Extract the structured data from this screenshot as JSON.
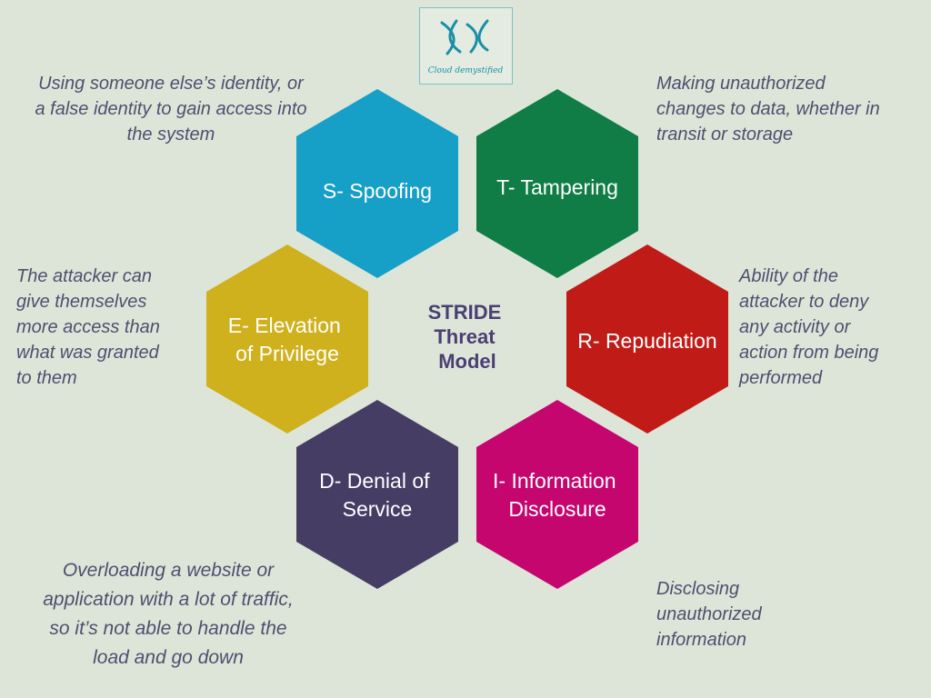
{
  "logo": {
    "mark": "XX",
    "caption": "Cloud demystified",
    "color": "#1b8fa6"
  },
  "center_title": [
    "STRIDE",
    "Threat",
    "Model"
  ],
  "hexagons": [
    {
      "key": "spoofing",
      "lines": [
        "S- Spoofing"
      ],
      "color": "#169fc7"
    },
    {
      "key": "tampering",
      "lines": [
        "T- Tampering"
      ],
      "color": "#0f7d45"
    },
    {
      "key": "repudiation",
      "lines": [
        "R- Repudiation"
      ],
      "color": "#c11b17"
    },
    {
      "key": "information-disclosure",
      "lines": [
        "I- Information",
        "Disclosure"
      ],
      "color": "#c5066f"
    },
    {
      "key": "denial-of-service",
      "lines": [
        "D- Denial of",
        "Service"
      ],
      "color": "#453d64"
    },
    {
      "key": "elevation-of-privilege",
      "lines": [
        "E- Elevation",
        "of Privilege"
      ],
      "color": "#cfb11d"
    }
  ],
  "descriptions": {
    "spoofing": [
      "Using someone else’s identity, or",
      "a false identity to gain access into",
      "the system"
    ],
    "tampering": [
      "Making unauthorized",
      "changes to data, whether in",
      "transit or storage"
    ],
    "repudiation": [
      "Ability of the",
      "attacker to deny",
      "any activity or",
      "action from being",
      "performed"
    ],
    "information_disclosure": [
      "Disclosing",
      "unauthorized",
      "information"
    ],
    "denial_of_service": [
      "Overloading a website or",
      "application with a lot of traffic,",
      "so it’s not able to handle the",
      "load and go down"
    ],
    "elevation_of_privilege": [
      "The attacker can",
      "give themselves",
      "more access than",
      "what was granted",
      "to them"
    ]
  }
}
